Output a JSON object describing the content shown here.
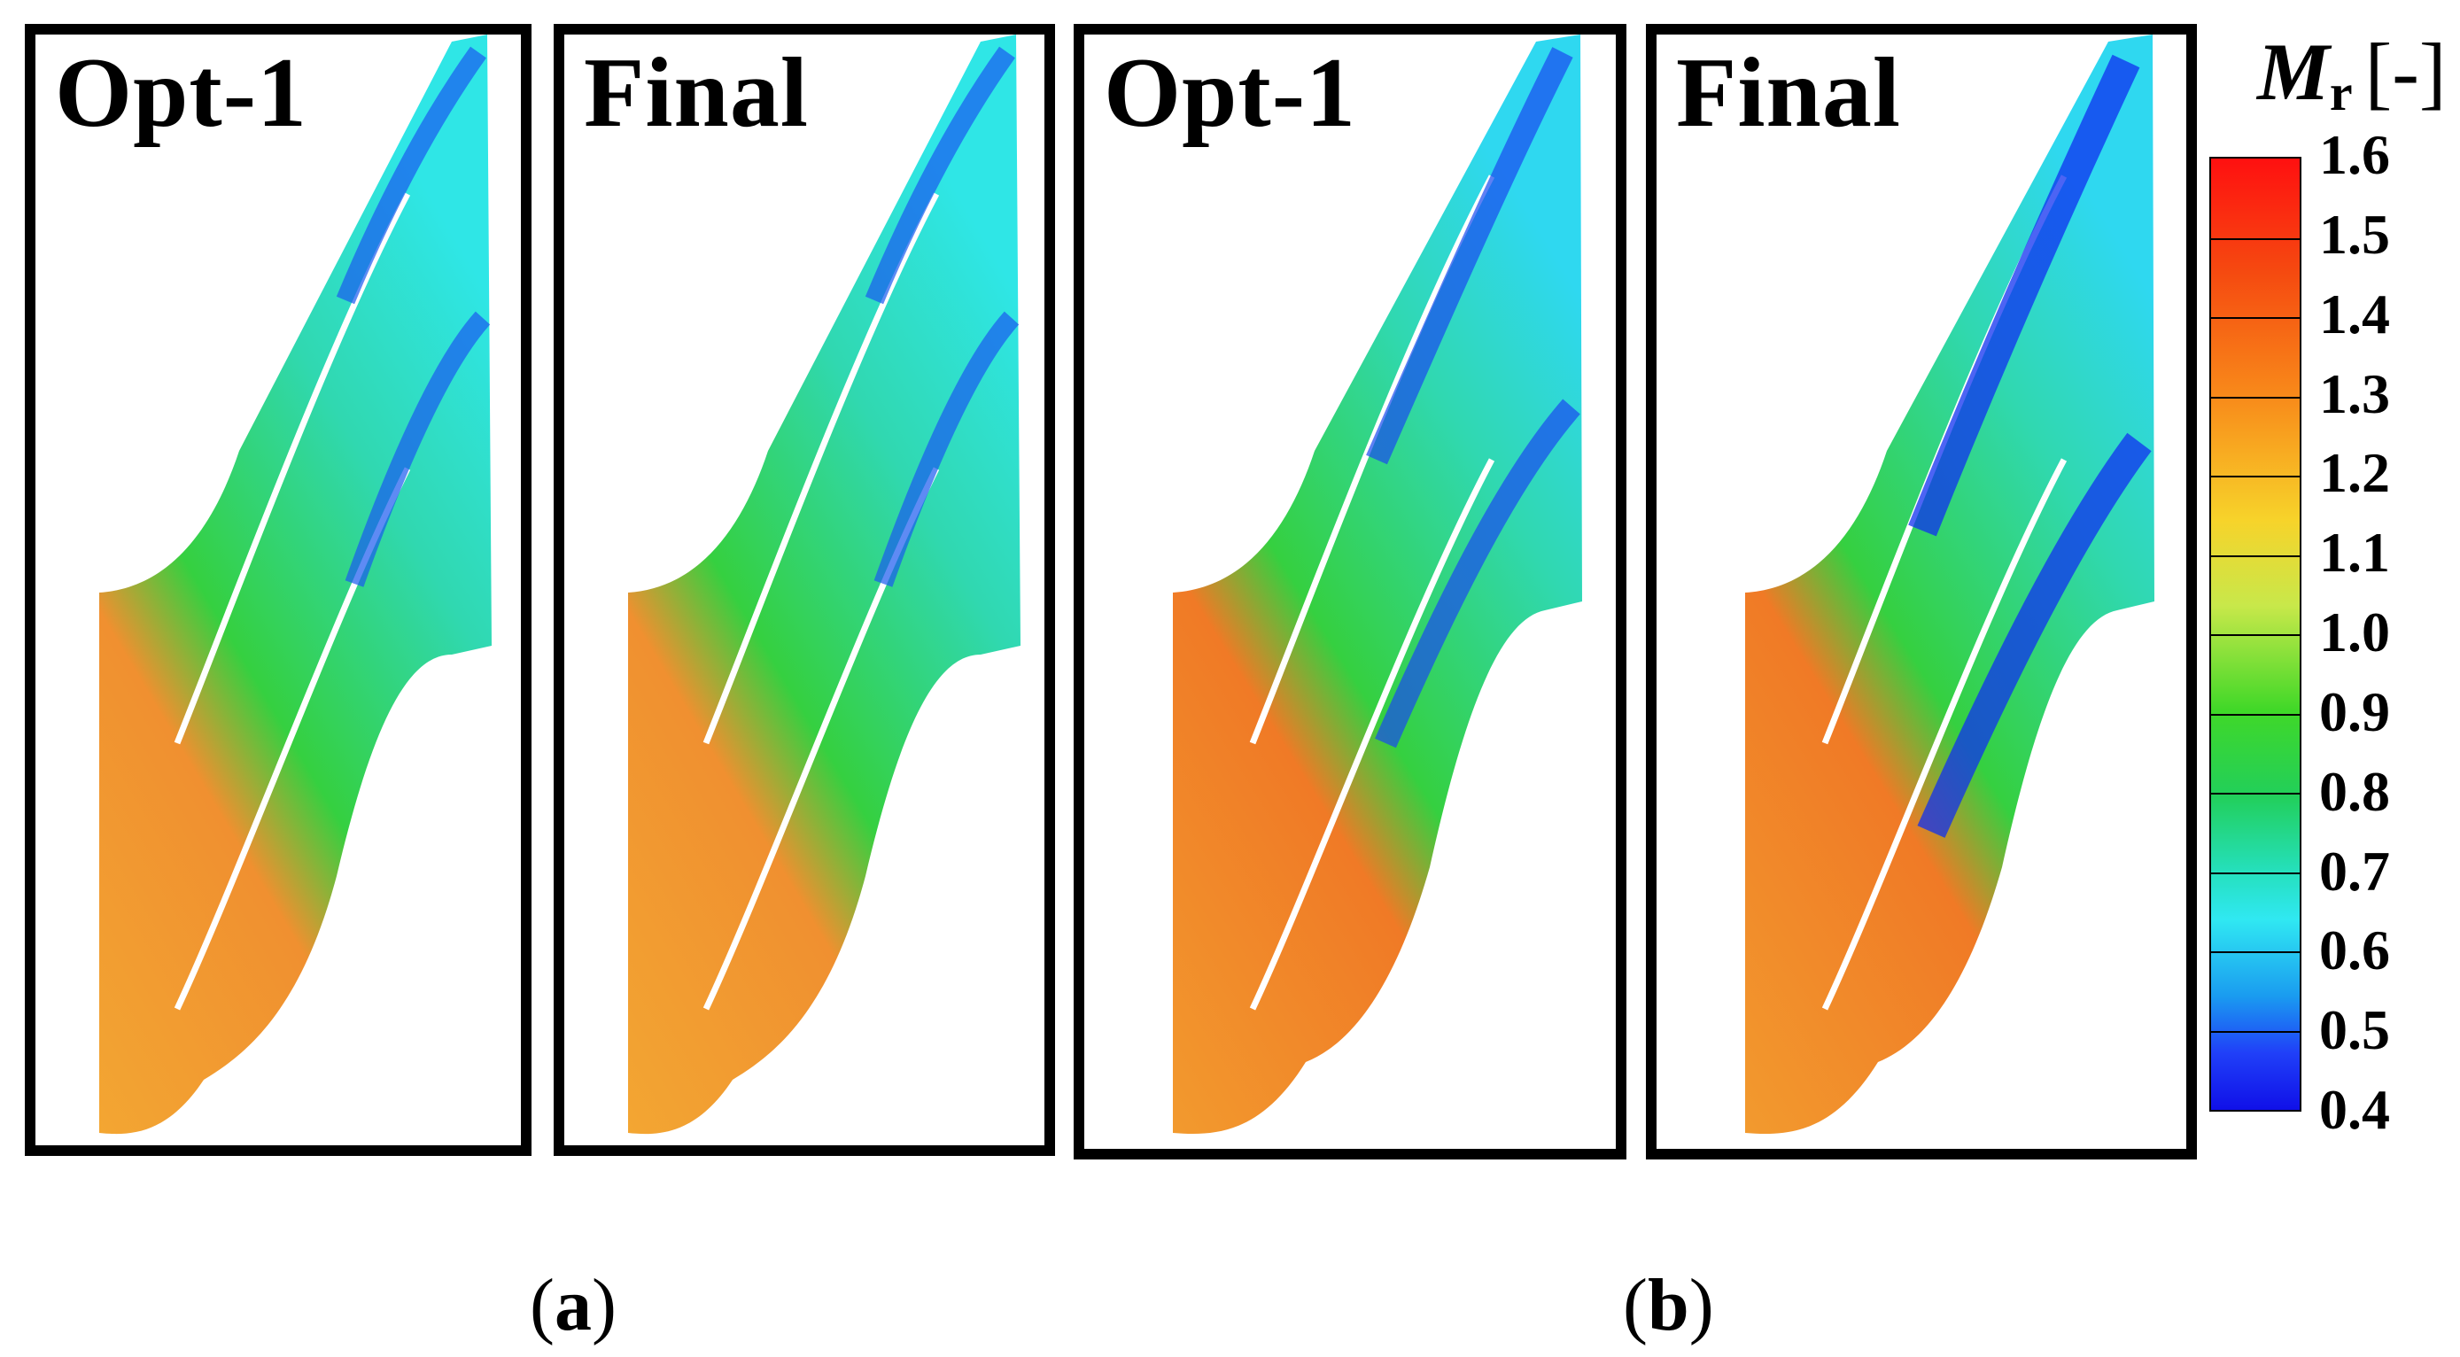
{
  "panels": [
    {
      "title": "Opt-1"
    },
    {
      "title": "Final"
    },
    {
      "title": "Opt-1"
    },
    {
      "title": "Final"
    }
  ],
  "captions": {
    "a": "a",
    "b": "b",
    "open": "(",
    "close": ")"
  },
  "legend": {
    "symbol": "M",
    "subscript": "r",
    "unit": "[-]",
    "ticks": [
      "1.6",
      "1.5",
      "1.4",
      "1.3",
      "1.2",
      "1.1",
      "1.0",
      "0.9",
      "0.8",
      "0.7",
      "0.6",
      "0.5",
      "0.4"
    ]
  },
  "colors": {
    "high": "#ff1010",
    "mid": "#40d828",
    "low": "#1010e8"
  }
}
